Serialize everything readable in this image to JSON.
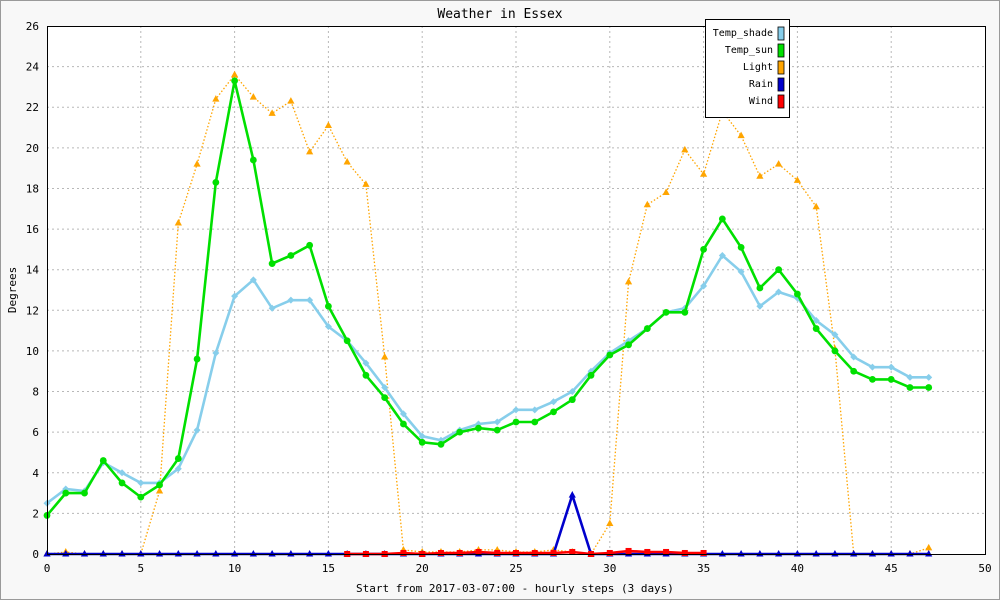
{
  "chart_data": {
    "type": "line",
    "title": "Weather in Essex",
    "xlabel": "Start from 2017-03-07:00 - hourly steps (3 days)",
    "ylabel": "Degrees",
    "xlim": [
      0,
      50
    ],
    "ylim": [
      0,
      26
    ],
    "x_ticks": [
      0,
      5,
      10,
      15,
      20,
      25,
      30,
      35,
      40,
      45,
      50
    ],
    "y_ticks": [
      0,
      2,
      4,
      6,
      8,
      10,
      12,
      14,
      16,
      18,
      20,
      22,
      24,
      26
    ],
    "grid": true,
    "legend_position": "top-right",
    "series": [
      {
        "name": "Temp_shade",
        "color": "#87ceeb",
        "style": "solid",
        "marker": "diamond",
        "x": [
          0,
          1,
          2,
          3,
          4,
          5,
          6,
          7,
          8,
          9,
          10,
          11,
          12,
          13,
          14,
          15,
          16,
          17,
          18,
          19,
          20,
          21,
          22,
          23,
          24,
          25,
          26,
          27,
          28,
          29,
          30,
          31,
          32,
          33,
          34,
          35,
          36,
          37,
          38,
          39,
          40,
          41,
          42,
          43,
          44,
          45,
          46,
          47
        ],
        "values": [
          2.5,
          3.2,
          3.1,
          4.5,
          4.0,
          3.5,
          3.5,
          4.2,
          6.1,
          9.9,
          12.7,
          13.5,
          12.1,
          12.5,
          12.5,
          11.2,
          10.5,
          9.4,
          8.2,
          6.9,
          5.8,
          5.6,
          6.1,
          6.4,
          6.5,
          7.1,
          7.1,
          7.5,
          8.0,
          9.0,
          9.9,
          10.5,
          11.1,
          11.9,
          12.1,
          13.2,
          14.7,
          13.9,
          12.2,
          12.9,
          12.6,
          11.5,
          10.8,
          9.7,
          9.2,
          9.2,
          8.7,
          8.7
        ]
      },
      {
        "name": "Temp_sun",
        "color": "#00e000",
        "style": "solid",
        "marker": "circle",
        "x": [
          0,
          1,
          2,
          3,
          4,
          5,
          6,
          7,
          8,
          9,
          10,
          11,
          12,
          13,
          14,
          15,
          16,
          17,
          18,
          19,
          20,
          21,
          22,
          23,
          24,
          25,
          26,
          27,
          28,
          29,
          30,
          31,
          32,
          33,
          34,
          35,
          36,
          37,
          38,
          39,
          40,
          41,
          42,
          43,
          44,
          45,
          46,
          47
        ],
        "values": [
          1.9,
          3.0,
          3.0,
          4.6,
          3.5,
          2.8,
          3.4,
          4.7,
          9.6,
          18.3,
          23.3,
          19.4,
          14.3,
          14.7,
          15.2,
          12.2,
          10.5,
          8.8,
          7.7,
          6.4,
          5.5,
          5.4,
          6.0,
          6.2,
          6.1,
          6.5,
          6.5,
          7.0,
          7.6,
          8.8,
          9.8,
          10.3,
          11.1,
          11.9,
          11.9,
          15.0,
          16.5,
          15.1,
          13.1,
          14.0,
          12.8,
          11.1,
          10.0,
          9.0,
          8.6,
          8.6,
          8.2,
          8.2
        ]
      },
      {
        "name": "Light",
        "color": "#ffa500",
        "style": "dotted",
        "marker": "triangle",
        "x": [
          0,
          1,
          2,
          3,
          4,
          5,
          6,
          7,
          8,
          9,
          10,
          11,
          12,
          13,
          14,
          15,
          16,
          17,
          18,
          19,
          20,
          21,
          22,
          23,
          24,
          25,
          26,
          27,
          28,
          29,
          30,
          31,
          32,
          33,
          34,
          35,
          36,
          37,
          38,
          39,
          40,
          41,
          42,
          43,
          44,
          45,
          46,
          47
        ],
        "values": [
          0.0,
          0.1,
          0.0,
          0.0,
          0.0,
          0.0,
          3.1,
          16.3,
          19.2,
          22.4,
          23.6,
          22.5,
          21.7,
          22.3,
          19.8,
          21.1,
          19.3,
          18.2,
          9.7,
          0.2,
          0.1,
          0.1,
          0.1,
          0.2,
          0.2,
          0.1,
          0.1,
          0.2,
          0.1,
          0.0,
          1.5,
          13.4,
          17.2,
          17.8,
          19.9,
          18.7,
          21.8,
          20.6,
          18.6,
          19.2,
          18.4,
          17.1,
          10.1,
          0.0,
          0.0,
          0.0,
          0.0,
          0.3
        ]
      },
      {
        "name": "Rain",
        "color": "#0000cc",
        "style": "solid",
        "marker": "triangle",
        "x": [
          0,
          1,
          2,
          3,
          4,
          5,
          6,
          7,
          8,
          9,
          10,
          11,
          12,
          13,
          14,
          15,
          16,
          17,
          18,
          19,
          20,
          21,
          22,
          23,
          24,
          25,
          26,
          27,
          28,
          29,
          30,
          31,
          32,
          33,
          34,
          35,
          36,
          37,
          38,
          39,
          40,
          41,
          42,
          43,
          44,
          45,
          46,
          47
        ],
        "values": [
          0,
          0,
          0,
          0,
          0,
          0,
          0,
          0,
          0,
          0,
          0,
          0,
          0,
          0,
          0,
          0,
          0,
          0,
          0,
          0,
          0,
          0,
          0,
          0,
          0,
          0,
          0,
          0,
          2.9,
          0,
          0,
          0,
          0,
          0,
          0,
          0,
          0,
          0,
          0,
          0,
          0,
          0,
          0,
          0,
          0,
          0,
          0,
          0
        ]
      },
      {
        "name": "Wind",
        "color": "#ff0000",
        "style": "solid",
        "marker": "square",
        "x": [
          16,
          17,
          18,
          19,
          20,
          21,
          22,
          23,
          24,
          25,
          26,
          27,
          28,
          29,
          30,
          31,
          32,
          33,
          34,
          35
        ],
        "values": [
          0.0,
          0.0,
          0.0,
          0.05,
          0.0,
          0.05,
          0.05,
          0.1,
          0.05,
          0.05,
          0.05,
          0.05,
          0.1,
          0.0,
          0.05,
          0.15,
          0.1,
          0.1,
          0.05,
          0.05
        ]
      }
    ]
  }
}
